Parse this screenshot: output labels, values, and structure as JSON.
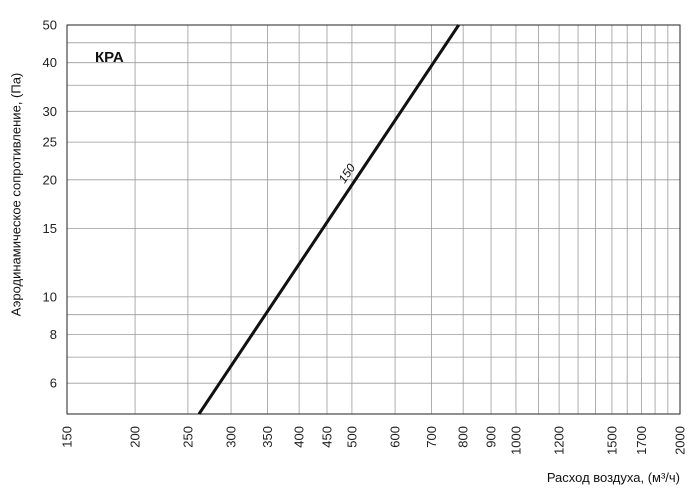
{
  "chart_data": {
    "type": "line",
    "x_scale": "log",
    "y_scale": "log",
    "grid": true,
    "annotation": "КРА",
    "xlabel": "Расход воздуха, (м³/ч)",
    "ylabel": "Аэродинамическое сопротивление, (Па)",
    "xlim": [
      150,
      2000
    ],
    "ylim": [
      5,
      50
    ],
    "x_ticks": [
      150,
      200,
      250,
      300,
      350,
      400,
      450,
      500,
      600,
      700,
      800,
      900,
      1000,
      1200,
      1500,
      1700,
      2000
    ],
    "x_ticks_labels": [
      "150",
      "200",
      "250",
      "300",
      "350",
      "400",
      "450",
      "500",
      "600",
      "700",
      "800",
      "900",
      "1000",
      "1200",
      "1500",
      "1700",
      "2000"
    ],
    "x_grid": [
      150,
      200,
      250,
      300,
      350,
      400,
      450,
      500,
      600,
      700,
      800,
      900,
      1000,
      1100,
      1200,
      1300,
      1400,
      1500,
      1600,
      1700,
      1800,
      1900,
      2000
    ],
    "y_ticks": [
      6,
      8,
      10,
      15,
      20,
      25,
      30,
      40,
      50
    ],
    "y_ticks_labels": [
      "6",
      "8",
      "10",
      "15",
      "20",
      "25",
      "30",
      "40",
      "50"
    ],
    "y_grid": [
      5,
      6,
      7,
      8,
      9,
      10,
      15,
      20,
      25,
      30,
      35,
      40,
      45,
      50
    ],
    "series": [
      {
        "label": "150",
        "color": "#111111",
        "points": [
          [
            262,
            5
          ],
          [
            785,
            50
          ]
        ]
      }
    ]
  }
}
